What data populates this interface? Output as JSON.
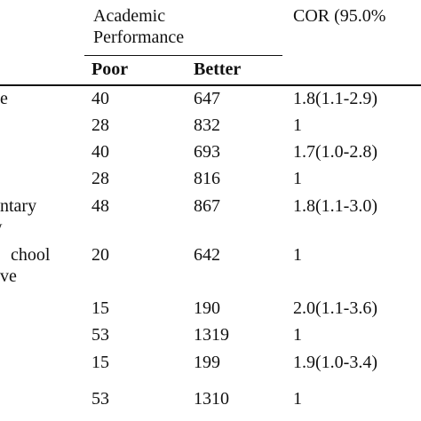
{
  "table": {
    "header": {
      "group": [
        "Academic",
        "Performance"
      ],
      "cor": "COR (95.0%",
      "poor": "Poor",
      "better": "Better"
    },
    "rows": [
      {
        "label": [
          "e"
        ],
        "poor": 40,
        "better": 647,
        "cor": "1.8(1.1-2.9)"
      },
      {
        "poor": 28,
        "better": 832,
        "cor": "1"
      },
      {
        "poor": 40,
        "better": 693,
        "cor": "1.7(1.0-2.8)"
      },
      {
        "poor": 28,
        "better": 816,
        "cor": "1"
      },
      {
        "label": [
          "ntary",
          "w"
        ],
        "poor": 48,
        "better": 867,
        "cor": "1.8(1.1-3.0)"
      },
      {
        "label": [
          "chool",
          "ve"
        ],
        "poor": 20,
        "better": 642,
        "cor": "1"
      },
      {
        "poor": 15,
        "better": 190,
        "cor": "2.0(1.1-3.6)"
      },
      {
        "poor": 53,
        "better": 1319,
        "cor": "1"
      },
      {
        "poor": 15,
        "better": 199,
        "cor": "1.9(1.0-3.4)"
      },
      {
        "poor": 53,
        "better": 1310,
        "cor": "1"
      }
    ]
  }
}
